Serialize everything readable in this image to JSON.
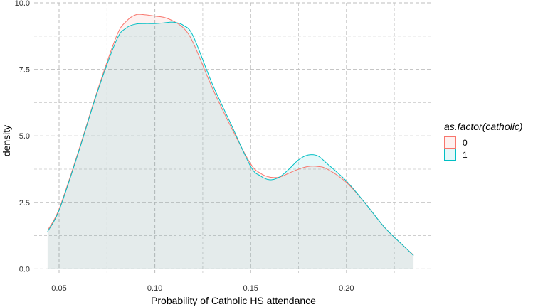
{
  "chart_data": {
    "type": "area",
    "xlabel": "Probability of Catholic HS attendance",
    "ylabel": "density",
    "xlim": [
      0.037,
      0.245
    ],
    "ylim": [
      -0.15,
      10.0
    ],
    "x_ticks": [
      0.05,
      0.1,
      0.15,
      0.2
    ],
    "x_tick_labels": [
      "0.05",
      "0.10",
      "0.15",
      "0.20"
    ],
    "y_ticks": [
      0.0,
      2.5,
      5.0,
      7.5,
      10.0
    ],
    "y_tick_labels": [
      "0.0",
      "2.5",
      "5.0",
      "7.5",
      "10.0"
    ],
    "grid": true,
    "legend": {
      "title": "as.factor(catholic)",
      "position": "right",
      "entries": [
        {
          "label": "0",
          "color": "#F8766D"
        },
        {
          "label": "1",
          "color": "#00BFC4"
        }
      ]
    },
    "series": [
      {
        "name": "0",
        "color": "#F8766D",
        "fill_opacity": 0.1,
        "x": [
          0.044,
          0.05,
          0.06,
          0.07,
          0.08,
          0.085,
          0.09,
          0.095,
          0.1,
          0.105,
          0.11,
          0.115,
          0.12,
          0.13,
          0.14,
          0.15,
          0.155,
          0.16,
          0.165,
          0.17,
          0.175,
          0.18,
          0.185,
          0.19,
          0.2,
          0.21,
          0.22,
          0.23,
          0.235
        ],
        "y": [
          1.45,
          2.25,
          4.4,
          6.7,
          8.75,
          9.3,
          9.55,
          9.55,
          9.5,
          9.45,
          9.3,
          9.05,
          8.5,
          6.8,
          5.3,
          3.95,
          3.6,
          3.45,
          3.45,
          3.6,
          3.75,
          3.85,
          3.85,
          3.75,
          3.25,
          2.45,
          1.55,
          0.85,
          0.52
        ]
      },
      {
        "name": "1",
        "color": "#00BFC4",
        "fill_opacity": 0.1,
        "x": [
          0.044,
          0.05,
          0.06,
          0.07,
          0.08,
          0.085,
          0.09,
          0.095,
          0.1,
          0.105,
          0.11,
          0.115,
          0.12,
          0.13,
          0.14,
          0.15,
          0.155,
          0.16,
          0.165,
          0.17,
          0.175,
          0.18,
          0.185,
          0.19,
          0.2,
          0.21,
          0.22,
          0.23,
          0.235
        ],
        "y": [
          1.4,
          2.2,
          4.35,
          6.65,
          8.6,
          9.05,
          9.2,
          9.22,
          9.22,
          9.25,
          9.27,
          9.15,
          8.75,
          6.95,
          5.4,
          3.85,
          3.5,
          3.35,
          3.45,
          3.75,
          4.1,
          4.28,
          4.25,
          3.95,
          3.3,
          2.45,
          1.55,
          0.85,
          0.5
        ]
      }
    ]
  }
}
